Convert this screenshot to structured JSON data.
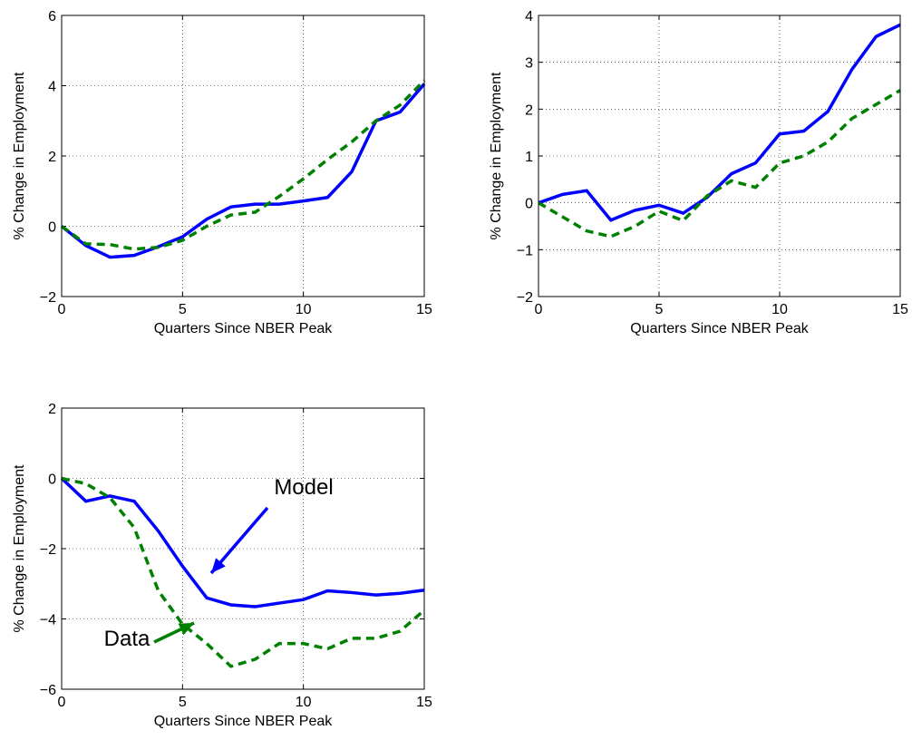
{
  "chart_data": [
    {
      "type": "line",
      "ylabel": "% Change in Employment",
      "xlabel": "Quarters Since NBER Peak",
      "x": [
        0,
        1,
        2,
        3,
        4,
        5,
        6,
        7,
        8,
        9,
        10,
        11,
        12,
        13,
        14,
        15
      ],
      "series": [
        {
          "color": "#0000ff",
          "style": "solid",
          "values": [
            0,
            -0.55,
            -0.88,
            -0.83,
            -0.58,
            -0.3,
            0.2,
            0.55,
            0.63,
            0.63,
            0.72,
            0.82,
            1.55,
            3.0,
            3.25,
            4.05
          ]
        },
        {
          "color": "#008000",
          "style": "dashed",
          "values": [
            0,
            -0.5,
            -0.52,
            -0.65,
            -0.6,
            -0.4,
            0.0,
            0.32,
            0.4,
            0.85,
            1.35,
            1.9,
            2.4,
            3.0,
            3.45,
            4.15
          ]
        }
      ],
      "xlim": [
        0,
        15
      ],
      "xticks": [
        0,
        5,
        10,
        15
      ],
      "ylim": [
        -2,
        6
      ],
      "yticks": [
        {
          "value": -2,
          "label": "−2"
        },
        0,
        2,
        4,
        6
      ],
      "grid": true
    },
    {
      "type": "line",
      "ylabel": "% Change in Employment",
      "xlabel": "Quarters Since NBER Peak",
      "x": [
        0,
        1,
        2,
        3,
        4,
        5,
        6,
        7,
        8,
        9,
        10,
        11,
        12,
        13,
        14,
        15
      ],
      "series": [
        {
          "color": "#0000ff",
          "style": "solid",
          "values": [
            0,
            0.18,
            0.26,
            -0.37,
            -0.16,
            -0.05,
            -0.22,
            0.12,
            0.62,
            0.85,
            1.47,
            1.53,
            1.95,
            2.85,
            3.55,
            3.8
          ]
        },
        {
          "color": "#008000",
          "style": "dashed",
          "values": [
            0,
            -0.3,
            -0.6,
            -0.72,
            -0.5,
            -0.18,
            -0.38,
            0.15,
            0.47,
            0.33,
            0.85,
            1.0,
            1.3,
            1.8,
            2.1,
            2.4
          ]
        }
      ],
      "xlim": [
        0,
        15
      ],
      "xticks": [
        0,
        5,
        10,
        15
      ],
      "ylim": [
        -2,
        4
      ],
      "yticks": [
        {
          "value": -2,
          "label": "−2"
        },
        {
          "value": -1,
          "label": "−1"
        },
        0,
        1,
        2,
        3,
        4
      ],
      "grid": true
    },
    {
      "type": "line",
      "ylabel": "% Change in Employment",
      "xlabel": "Quarters Since NBER Peak",
      "x": [
        0,
        1,
        2,
        3,
        4,
        5,
        6,
        7,
        8,
        9,
        10,
        11,
        12,
        13,
        14,
        15
      ],
      "series": [
        {
          "name": "Model",
          "color": "#0000ff",
          "style": "solid",
          "values": [
            0,
            -0.65,
            -0.5,
            -0.65,
            -1.5,
            -2.5,
            -3.4,
            -3.6,
            -3.65,
            -3.55,
            -3.45,
            -3.2,
            -3.25,
            -3.32,
            -3.27,
            -3.18
          ]
        },
        {
          "name": "Data",
          "color": "#008000",
          "style": "dashed",
          "values": [
            0,
            -0.15,
            -0.55,
            -1.4,
            -3.2,
            -4.15,
            -4.7,
            -5.35,
            -5.15,
            -4.7,
            -4.7,
            -4.85,
            -4.55,
            -4.55,
            -4.35,
            -3.75
          ]
        }
      ],
      "xlim": [
        0,
        15
      ],
      "xticks": [
        0,
        5,
        10,
        15
      ],
      "ylim": [
        -6,
        2
      ],
      "yticks": [
        {
          "value": -6,
          "label": "−6"
        },
        {
          "value": -4,
          "label": "−4"
        },
        {
          "value": -2,
          "label": "−2"
        },
        0,
        2
      ],
      "grid": true
    }
  ]
}
